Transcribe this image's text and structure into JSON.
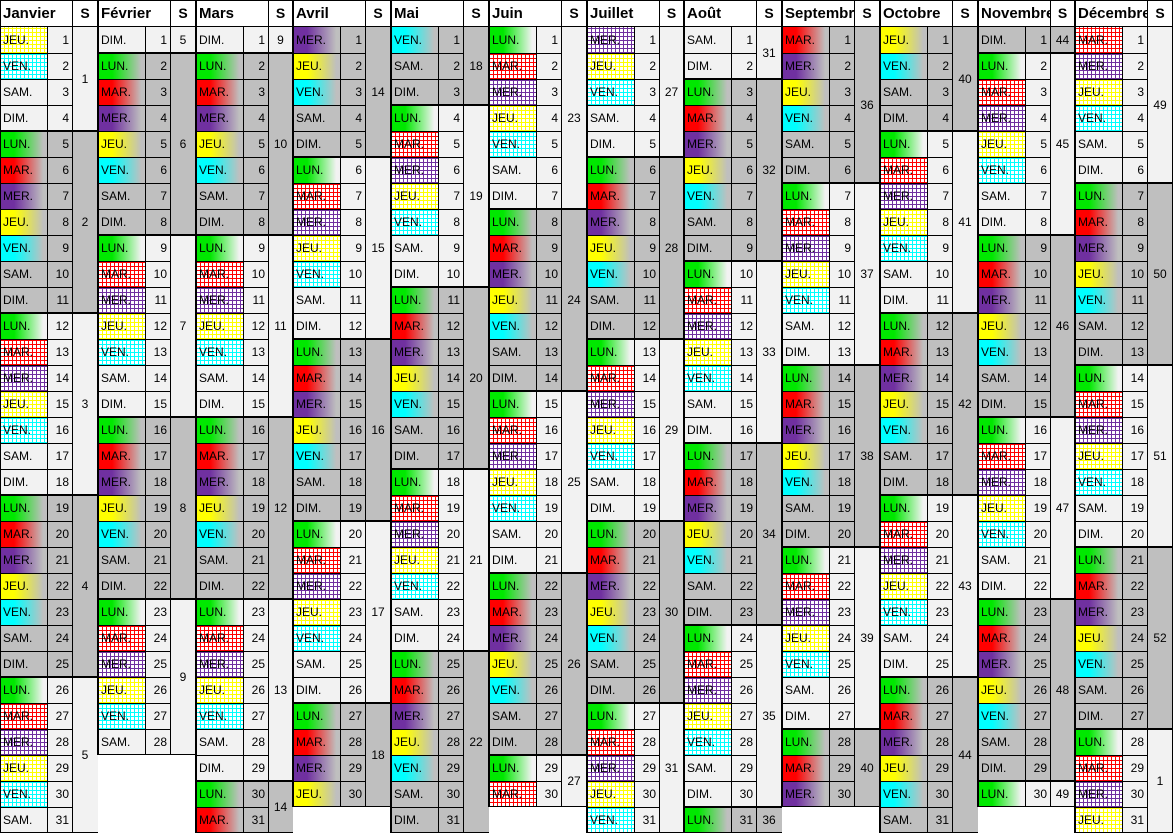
{
  "calendar": {
    "week_column_header": "S",
    "weekday_labels": [
      "LUN.",
      "MAR.",
      "MER.",
      "JEU.",
      "VEN.",
      "SAM.",
      "DIM."
    ],
    "weekday_colors": {
      "LUN.": "#00e800",
      "MAR.": "#ff0000",
      "MER.": "#7030a0",
      "JEU.": "#ffff00",
      "VEN.": "#00ffff",
      "SAM.": null,
      "DIM.": null
    },
    "colors": {
      "odd_week_bg": "#f2f2f2",
      "even_week_bg": "#bfbfbf",
      "hatch_bg": "#ffffff",
      "header_bg": "#ffffff",
      "grid_border": "#000000",
      "text": "#000000"
    },
    "months": [
      {
        "name": "Janvier",
        "first_weekday": "JEU.",
        "days_in_month": 31,
        "weeks": [
          [
            1,
            1,
            4
          ],
          [
            2,
            5,
            11
          ],
          [
            3,
            12,
            18
          ],
          [
            4,
            19,
            25
          ],
          [
            5,
            26,
            31
          ]
        ],
        "hatched_days": [
          1,
          2,
          13,
          14,
          15,
          16,
          27,
          28,
          29,
          30
        ]
      },
      {
        "name": "Février",
        "first_weekday": "DIM.",
        "days_in_month": 28,
        "weeks": [
          [
            5,
            1,
            1
          ],
          [
            6,
            2,
            8
          ],
          [
            7,
            9,
            15
          ],
          [
            8,
            16,
            22
          ],
          [
            9,
            23,
            28
          ]
        ],
        "hatched_days": [
          10,
          11,
          12,
          13,
          24,
          25,
          26,
          27
        ]
      },
      {
        "name": "Mars",
        "first_weekday": "DIM.",
        "days_in_month": 31,
        "weeks": [
          [
            9,
            1,
            1
          ],
          [
            10,
            2,
            8
          ],
          [
            11,
            9,
            15
          ],
          [
            12,
            16,
            22
          ],
          [
            13,
            23,
            29
          ],
          [
            14,
            30,
            31
          ]
        ],
        "hatched_days": [
          10,
          11,
          12,
          13,
          24,
          25,
          26,
          27
        ]
      },
      {
        "name": "Avril",
        "first_weekday": "MER.",
        "days_in_month": 30,
        "weeks": [
          [
            14,
            1,
            5
          ],
          [
            15,
            6,
            12
          ],
          [
            16,
            13,
            19
          ],
          [
            17,
            20,
            26
          ],
          [
            18,
            27,
            30
          ]
        ],
        "hatched_days": [
          7,
          8,
          9,
          10,
          21,
          22,
          23,
          24
        ]
      },
      {
        "name": "Mai",
        "first_weekday": "VEN.",
        "days_in_month": 31,
        "weeks": [
          [
            18,
            1,
            3
          ],
          [
            19,
            4,
            10
          ],
          [
            20,
            11,
            17
          ],
          [
            21,
            18,
            24
          ],
          [
            22,
            25,
            31
          ]
        ],
        "hatched_days": [
          5,
          6,
          7,
          8,
          19,
          20,
          21,
          22
        ]
      },
      {
        "name": "Juin",
        "first_weekday": "LUN.",
        "days_in_month": 30,
        "weeks": [
          [
            23,
            1,
            7
          ],
          [
            24,
            8,
            14
          ],
          [
            25,
            15,
            21
          ],
          [
            26,
            22,
            28
          ],
          [
            27,
            29,
            30
          ]
        ],
        "hatched_days": [
          2,
          3,
          4,
          5,
          16,
          17,
          18,
          19,
          30
        ]
      },
      {
        "name": "Juillet",
        "first_weekday": "MER.",
        "days_in_month": 31,
        "weeks": [
          [
            27,
            1,
            5
          ],
          [
            28,
            6,
            12
          ],
          [
            29,
            13,
            19
          ],
          [
            30,
            20,
            26
          ],
          [
            31,
            27,
            31
          ]
        ],
        "hatched_days": [
          1,
          2,
          3,
          14,
          15,
          16,
          17,
          28,
          29,
          30,
          31
        ]
      },
      {
        "name": "Août",
        "first_weekday": "SAM.",
        "days_in_month": 31,
        "weeks": [
          [
            31,
            1,
            2
          ],
          [
            32,
            3,
            9
          ],
          [
            33,
            10,
            16
          ],
          [
            34,
            17,
            23
          ],
          [
            35,
            24,
            30
          ],
          [
            36,
            31,
            31
          ]
        ],
        "hatched_days": [
          11,
          12,
          13,
          14,
          25,
          26,
          27,
          28
        ]
      },
      {
        "name": "Septembre",
        "first_weekday": "MAR.",
        "days_in_month": 30,
        "weeks": [
          [
            36,
            1,
            6
          ],
          [
            37,
            7,
            13
          ],
          [
            38,
            14,
            20
          ],
          [
            39,
            21,
            27
          ],
          [
            40,
            28,
            30
          ]
        ],
        "hatched_days": [
          8,
          9,
          10,
          11,
          22,
          23,
          24,
          25
        ]
      },
      {
        "name": "Octobre",
        "first_weekday": "JEU.",
        "days_in_month": 31,
        "weeks": [
          [
            40,
            1,
            4
          ],
          [
            41,
            5,
            11
          ],
          [
            42,
            12,
            18
          ],
          [
            43,
            19,
            25
          ],
          [
            44,
            26,
            31
          ]
        ],
        "hatched_days": [
          6,
          7,
          8,
          9,
          20,
          21,
          22,
          23
        ]
      },
      {
        "name": "Novembre",
        "first_weekday": "DIM.",
        "days_in_month": 30,
        "weeks": [
          [
            44,
            1,
            1
          ],
          [
            45,
            2,
            8
          ],
          [
            46,
            9,
            15
          ],
          [
            47,
            16,
            22
          ],
          [
            48,
            23,
            29
          ],
          [
            49,
            30,
            30
          ]
        ],
        "hatched_days": [
          3,
          4,
          5,
          6,
          17,
          18,
          19,
          20
        ]
      },
      {
        "name": "Décembre",
        "first_weekday": "MAR.",
        "days_in_month": 31,
        "weeks": [
          [
            49,
            1,
            6
          ],
          [
            50,
            7,
            13
          ],
          [
            51,
            14,
            20
          ],
          [
            52,
            21,
            27
          ],
          [
            1,
            28,
            31
          ]
        ],
        "hatched_days": [
          1,
          2,
          3,
          4,
          15,
          16,
          17,
          18,
          29,
          30,
          31
        ]
      }
    ]
  }
}
